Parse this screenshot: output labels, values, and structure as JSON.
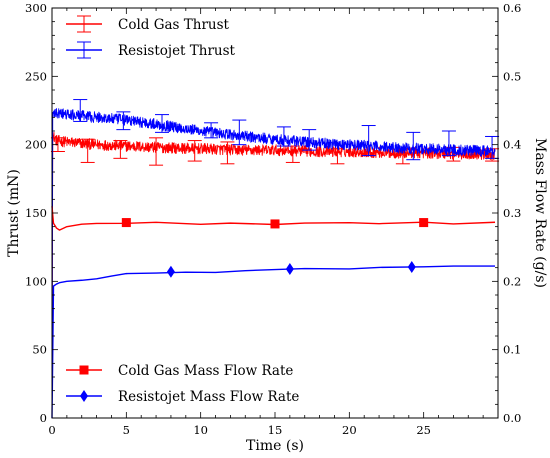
{
  "chart_data": {
    "type": "line",
    "title": "",
    "xlabel": "Time (s)",
    "ylabel_left": "Thrust (mN)",
    "ylabel_right": "Mass Flow Rate (g/s)",
    "xlim": [
      0,
      30
    ],
    "ylim_left": [
      0,
      300
    ],
    "ylim_right": [
      0,
      0.6
    ],
    "x_ticks": [
      "0",
      "5",
      "10",
      "15",
      "20",
      "25"
    ],
    "x_tick_values": [
      0,
      5,
      10,
      15,
      20,
      25
    ],
    "y_left_ticks": [
      "0",
      "50",
      "100",
      "150",
      "200",
      "250",
      "300"
    ],
    "y_left_tick_values": [
      0,
      50,
      100,
      150,
      200,
      250,
      300
    ],
    "y_right_ticks": [
      "0.0",
      "0.1",
      "0.2",
      "0.3",
      "0.4",
      "0.5",
      "0.6"
    ],
    "y_right_tick_values": [
      0,
      0.1,
      0.2,
      0.3,
      0.4,
      0.5,
      0.6
    ],
    "grid": false,
    "colors": {
      "cold_gas": "#ff0000",
      "resistojet": "#0000ff"
    },
    "series": [
      {
        "name": "Cold Gas Thrust",
        "axis": "left",
        "style": "noisy-line-with-errorbars",
        "color": "#ff0000",
        "x": [
          0,
          0.05,
          0.3,
          1,
          3,
          5,
          7,
          10,
          13,
          15,
          18,
          20,
          23,
          25,
          28,
          29.8
        ],
        "y": [
          0,
          207,
          203,
          202,
          200,
          199,
          198,
          197,
          196,
          196,
          195,
          195,
          194,
          194,
          193,
          193
        ],
        "noise": 4,
        "errorbars": [
          {
            "x": 0.4,
            "y": 199,
            "lower": 195,
            "upper": 205
          },
          {
            "x": 2.4,
            "y": 196,
            "lower": 187,
            "upper": 204
          },
          {
            "x": 4.6,
            "y": 196,
            "lower": 190,
            "upper": 203
          },
          {
            "x": 7.0,
            "y": 195,
            "lower": 185,
            "upper": 205
          },
          {
            "x": 9.6,
            "y": 194,
            "lower": 188,
            "upper": 203
          },
          {
            "x": 11.8,
            "y": 193,
            "lower": 186,
            "upper": 202
          },
          {
            "x": 16.2,
            "y": 193,
            "lower": 187,
            "upper": 199
          },
          {
            "x": 19.2,
            "y": 192,
            "lower": 186,
            "upper": 197
          },
          {
            "x": 23.6,
            "y": 192,
            "lower": 186,
            "upper": 197
          },
          {
            "x": 27.0,
            "y": 192,
            "lower": 188,
            "upper": 198
          },
          {
            "x": 29.6,
            "y": 192,
            "lower": 188,
            "upper": 197
          }
        ]
      },
      {
        "name": "Resistojet Thrust",
        "axis": "left",
        "style": "noisy-line-with-errorbars",
        "color": "#0000ff",
        "x": [
          0,
          0.05,
          0.4,
          1,
          3,
          5,
          7,
          10,
          13,
          15,
          18,
          20,
          23,
          25,
          28,
          29.8
        ],
        "y": [
          0,
          222,
          223,
          222,
          220,
          218,
          215,
          210,
          206,
          204,
          201,
          200,
          198,
          197,
          196,
          195
        ],
        "noise": 4,
        "errorbars": [
          {
            "x": 1.9,
            "y": 224,
            "lower": 217,
            "upper": 233
          },
          {
            "x": 4.8,
            "y": 218,
            "lower": 211,
            "upper": 224
          },
          {
            "x": 7.4,
            "y": 217,
            "lower": 209,
            "upper": 222
          },
          {
            "x": 10.7,
            "y": 211,
            "lower": 205,
            "upper": 216
          },
          {
            "x": 12.6,
            "y": 208,
            "lower": 200,
            "upper": 218
          },
          {
            "x": 15.6,
            "y": 207,
            "lower": 199,
            "upper": 213
          },
          {
            "x": 17.3,
            "y": 205,
            "lower": 196,
            "upper": 211
          },
          {
            "x": 21.3,
            "y": 204,
            "lower": 192,
            "upper": 214
          },
          {
            "x": 24.3,
            "y": 200,
            "lower": 189,
            "upper": 209
          },
          {
            "x": 26.7,
            "y": 200,
            "lower": 192,
            "upper": 210
          },
          {
            "x": 29.6,
            "y": 198,
            "lower": 190,
            "upper": 206
          }
        ]
      },
      {
        "name": "Cold Gas Mass Flow Rate",
        "axis": "right",
        "style": "line-with-markers",
        "marker": "square",
        "color": "#ff0000",
        "x": [
          0,
          0.1,
          0.3,
          0.5,
          1,
          2,
          3,
          5,
          7,
          10,
          12,
          15,
          17,
          20,
          22,
          25,
          27,
          29.8
        ],
        "y": [
          0.31,
          0.285,
          0.278,
          0.275,
          0.28,
          0.283,
          0.285,
          0.285,
          0.286,
          0.284,
          0.286,
          0.284,
          0.286,
          0.285,
          0.284,
          0.286,
          0.285,
          0.286
        ],
        "markers_x": [
          5,
          15,
          25
        ],
        "markers_y": [
          0.286,
          0.284,
          0.286
        ]
      },
      {
        "name": "Resistojet Mass Flow Rate",
        "axis": "right",
        "style": "line-with-markers",
        "marker": "diamond",
        "color": "#0000ff",
        "x": [
          0,
          0.1,
          0.3,
          0.5,
          1,
          2,
          3,
          4,
          5,
          7,
          9,
          11,
          13,
          15,
          17,
          20,
          22,
          25,
          27,
          29.8
        ],
        "y": [
          0.0,
          0.193,
          0.196,
          0.198,
          0.2,
          0.202,
          0.204,
          0.207,
          0.211,
          0.213,
          0.213,
          0.214,
          0.215,
          0.217,
          0.218,
          0.219,
          0.221,
          0.221,
          0.222,
          0.222
        ],
        "markers_x": [
          8,
          16,
          24.2
        ],
        "markers_y": [
          0.214,
          0.218,
          0.221
        ]
      }
    ],
    "legends": [
      {
        "position": "top-left",
        "entries": [
          "Cold Gas Thrust",
          "Resistojet Thrust"
        ]
      },
      {
        "position": "bottom-left",
        "entries": [
          "Cold Gas Mass Flow Rate",
          "Resistojet Mass Flow Rate"
        ]
      }
    ]
  }
}
